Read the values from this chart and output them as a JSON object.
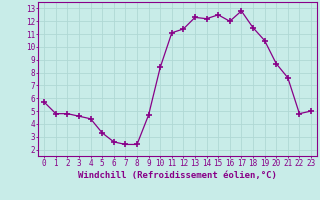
{
  "x": [
    0,
    1,
    2,
    3,
    4,
    5,
    6,
    7,
    8,
    9,
    10,
    11,
    12,
    13,
    14,
    15,
    16,
    17,
    18,
    19,
    20,
    21,
    22,
    23
  ],
  "y": [
    5.7,
    4.8,
    4.8,
    4.6,
    4.4,
    3.3,
    2.6,
    2.4,
    2.4,
    4.7,
    8.4,
    11.1,
    11.4,
    12.3,
    12.2,
    12.5,
    12.0,
    12.8,
    11.5,
    10.5,
    8.7,
    7.6,
    4.8,
    5.0
  ],
  "line_color": "#880088",
  "marker": "+",
  "marker_size": 4,
  "bg_color": "#c8ece8",
  "grid_color": "#b0d8d4",
  "xlabel": "Windchill (Refroidissement éolien,°C)",
  "xlim": [
    -0.5,
    23.5
  ],
  "ylim": [
    1.5,
    13.5
  ],
  "yticks": [
    2,
    3,
    4,
    5,
    6,
    7,
    8,
    9,
    10,
    11,
    12,
    13
  ],
  "xticks": [
    0,
    1,
    2,
    3,
    4,
    5,
    6,
    7,
    8,
    9,
    10,
    11,
    12,
    13,
    14,
    15,
    16,
    17,
    18,
    19,
    20,
    21,
    22,
    23
  ],
  "tick_label_fontsize": 5.5,
  "xlabel_fontsize": 6.5,
  "label_color": "#880088",
  "line_width": 0.9,
  "marker_linewidth": 1.2
}
